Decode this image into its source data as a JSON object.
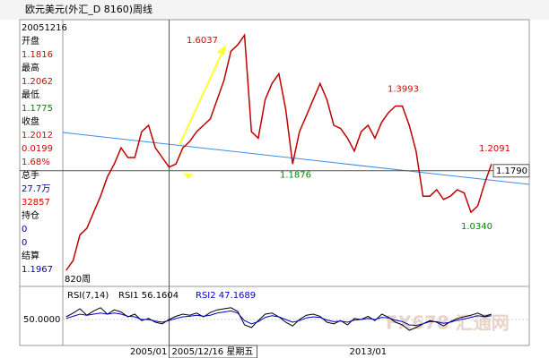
{
  "header": {
    "title": "欧元美元(外汇_D 8160)周线"
  },
  "panel": [
    {
      "text": "20051216",
      "color": "#000"
    },
    {
      "text": "开盘",
      "color": "#000"
    },
    {
      "text": "1.1816",
      "color": "#d00"
    },
    {
      "text": "最高",
      "color": "#000"
    },
    {
      "text": "1.2062",
      "color": "#d00"
    },
    {
      "text": "最低",
      "color": "#000"
    },
    {
      "text": "1.1775",
      "color": "#080"
    },
    {
      "text": "收盘",
      "color": "#000"
    },
    {
      "text": "1.2012",
      "color": "#d00"
    },
    {
      "text": "0.0199",
      "color": "#d00"
    },
    {
      "text": "1.68%",
      "color": "#d00"
    },
    {
      "text": "总手",
      "color": "#000"
    },
    {
      "text": "27.7万",
      "color": "#00a"
    },
    {
      "text": "32857",
      "color": "#d00"
    },
    {
      "text": "持仓",
      "color": "#000"
    },
    {
      "text": "0",
      "color": "#00a"
    },
    {
      "text": "0",
      "color": "#00a"
    },
    {
      "text": "结算",
      "color": "#000"
    },
    {
      "text": "1.1967",
      "color": "#00a"
    }
  ],
  "chart_data": [
    {
      "type": "line",
      "categories": [
        null,
        null,
        null,
        null,
        null,
        null,
        null,
        null,
        null,
        null,
        null,
        null,
        "2005/01",
        null,
        null,
        null,
        null,
        null,
        null,
        null,
        null,
        null,
        null,
        null,
        null,
        null,
        null,
        null,
        null,
        null,
        null,
        null,
        null,
        null,
        null,
        null,
        null,
        null,
        null,
        null,
        null,
        null,
        null,
        null,
        "2013/01",
        null,
        null,
        null,
        null,
        null,
        null,
        null,
        null,
        null,
        null,
        null,
        null,
        null,
        null,
        null,
        null,
        null,
        null,
        null,
        null,
        null,
        null,
        null
      ],
      "series": [
        {
          "color": "#c00000",
          "values": [
            0.87,
            0.9,
            0.98,
            1.0,
            1.05,
            1.1,
            1.16,
            1.2,
            1.25,
            1.22,
            1.22,
            1.3,
            1.32,
            1.25,
            1.22,
            1.19,
            1.2,
            1.25,
            1.27,
            1.3,
            1.32,
            1.34,
            1.4,
            1.46,
            1.55,
            1.57,
            1.6,
            1.3,
            1.28,
            1.4,
            1.45,
            1.48,
            1.37,
            1.2,
            1.3,
            1.35,
            1.4,
            1.45,
            1.4,
            1.32,
            1.31,
            1.28,
            1.24,
            1.3,
            1.32,
            1.28,
            1.33,
            1.36,
            1.38,
            1.38,
            1.32,
            1.24,
            1.1,
            1.1,
            1.12,
            1.09,
            1.1,
            1.12,
            1.11,
            1.05,
            1.07,
            1.14,
            1.2,
            null,
            null,
            null,
            null,
            null
          ]
        }
      ],
      "ylim": [
        0.82,
        1.648
      ],
      "crosshair": {
        "value": 1.179,
        "label": "1.1790"
      },
      "crosshair_date": "2005/12/16 星期五",
      "bar_count": "820周",
      "annotations": [
        {
          "value": 1.6037,
          "label": "1.6037",
          "color": "#d00"
        },
        {
          "value": 1.3993,
          "label": "1.3993",
          "color": "#d00"
        },
        {
          "value": 1.1876,
          "label": "1.1876",
          "color": "#080"
        },
        {
          "value": 1.2091,
          "label": "1.2091",
          "color": "#d00"
        },
        {
          "value": 1.034,
          "label": "1.0340",
          "color": "#080"
        }
      ]
    },
    {
      "type": "line",
      "title": "RSI(7,14)",
      "series": [
        {
          "name": "RSI1 56.1604",
          "color": "#000",
          "values": [
            55,
            62,
            70,
            58,
            66,
            72,
            60,
            68,
            64,
            55,
            60,
            48,
            52,
            45,
            42,
            50,
            56,
            60,
            58,
            62,
            55,
            63,
            68,
            70,
            72,
            65,
            40,
            35,
            48,
            60,
            62,
            55,
            45,
            38,
            50,
            58,
            60,
            56,
            45,
            42,
            48,
            40,
            52,
            50,
            56,
            48,
            60,
            54,
            45,
            40,
            30,
            35,
            42,
            48,
            45,
            38,
            46,
            52,
            55,
            58,
            62,
            56,
            60,
            null,
            null,
            null,
            null,
            null
          ]
        },
        {
          "name": "RSI2 47.1689",
          "color": "#0000cc",
          "values": [
            52,
            56,
            60,
            58,
            60,
            62,
            60,
            62,
            60,
            56,
            55,
            50,
            50,
            47,
            45,
            48,
            52,
            55,
            56,
            58,
            56,
            58,
            62,
            64,
            66,
            62,
            48,
            42,
            46,
            54,
            57,
            55,
            50,
            45,
            48,
            53,
            55,
            54,
            49,
            46,
            47,
            45,
            49,
            50,
            52,
            50,
            54,
            53,
            49,
            46,
            40,
            39,
            42,
            46,
            46,
            43,
            45,
            49,
            51,
            54,
            57,
            55,
            57,
            null,
            null,
            null,
            null,
            null
          ]
        }
      ],
      "ylim": [
        0,
        100
      ],
      "yticks": [
        {
          "value": 50,
          "label": "50.0000"
        }
      ]
    }
  ],
  "watermark": "FX678 汇通网"
}
